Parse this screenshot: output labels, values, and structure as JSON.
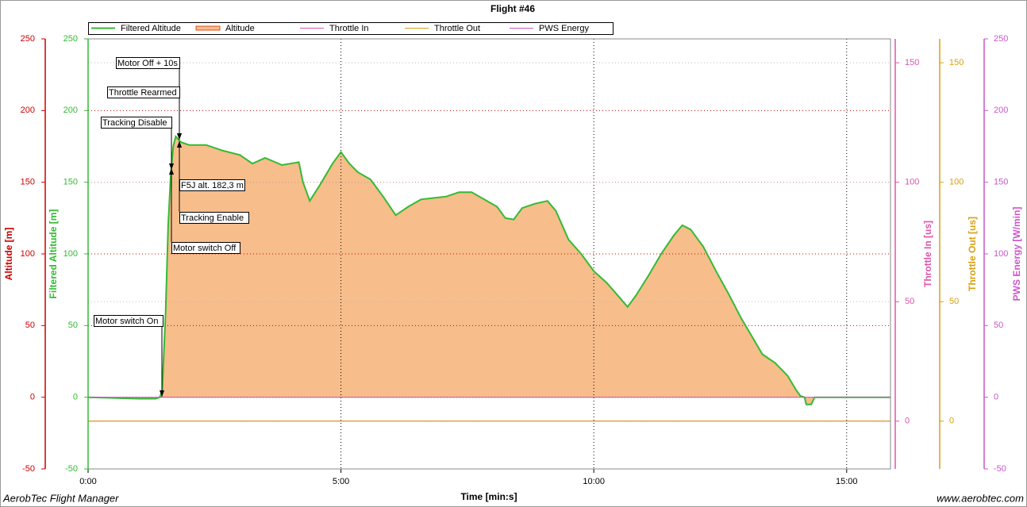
{
  "chart_data": {
    "type": "line",
    "title": "Flight #46",
    "x_label": "Time [min:s]",
    "footer_left": "AerobTec Flight Manager",
    "footer_right": "www.aerobtec.com",
    "xlim": [
      0,
      952
    ],
    "xticks": [
      {
        "value": 0,
        "label": "0:00"
      },
      {
        "value": 300,
        "label": "5:00"
      },
      {
        "value": 600,
        "label": "10:00"
      },
      {
        "value": 900,
        "label": "15:00"
      }
    ],
    "grid": true,
    "y_axes": [
      {
        "label": "Altitude [m]",
        "color": "#cc0000",
        "ylim": [
          -50,
          250
        ],
        "yticks": [
          -50,
          0,
          50,
          100,
          150,
          200,
          250
        ]
      },
      {
        "label": "Filtered Altitude [m]",
        "color": "#33bb33",
        "ylim": [
          -50,
          250
        ],
        "yticks": [
          -50,
          0,
          50,
          100,
          150,
          200,
          250
        ]
      },
      {
        "label": "Throttle In [us]",
        "color": "#dd55aa",
        "ylim": [
          -20,
          160
        ],
        "yticks": [
          0,
          50,
          100,
          150
        ]
      },
      {
        "label": "Throttle Out [us]",
        "color": "#d9a010",
        "ylim": [
          -20,
          160
        ],
        "yticks": [
          0,
          50,
          100,
          150
        ]
      },
      {
        "label": "PWS Energy [W/min]",
        "color": "#cc55cc",
        "ylim": [
          -50,
          250
        ],
        "yticks": [
          -50,
          0,
          50,
          100,
          150,
          200,
          250
        ]
      }
    ],
    "x": [
      0,
      60,
      80,
      85,
      88,
      92,
      95,
      98,
      101,
      104,
      110,
      120,
      140,
      160,
      180,
      195,
      210,
      230,
      240,
      250,
      255,
      263,
      275,
      290,
      300,
      310,
      320,
      335,
      350,
      365,
      380,
      395,
      410,
      425,
      440,
      455,
      470,
      485,
      495,
      505,
      515,
      530,
      545,
      555,
      570,
      585,
      600,
      615,
      630,
      640,
      650,
      665,
      680,
      695,
      705,
      715,
      730,
      745,
      760,
      775,
      790,
      800,
      815,
      830,
      840,
      845,
      850,
      852,
      858,
      862,
      900,
      952
    ],
    "series": [
      {
        "name": "Filtered Altitude",
        "color": "#33bb33",
        "axis": 1,
        "style": "line",
        "values": [
          0,
          -1,
          -1,
          0,
          5,
          60,
          120,
          155,
          175,
          182,
          178,
          176,
          176,
          172,
          169,
          163,
          167,
          162,
          163,
          164,
          150,
          137,
          148,
          163,
          171,
          163,
          157,
          152,
          140,
          127,
          133,
          138,
          139,
          140,
          143,
          143,
          138,
          133,
          125,
          124,
          132,
          135,
          137,
          130,
          110,
          100,
          88,
          80,
          70,
          63,
          71,
          85,
          100,
          113,
          120,
          117,
          105,
          88,
          72,
          55,
          40,
          30,
          24,
          15,
          5,
          1,
          0,
          -5,
          -5,
          0,
          0,
          0
        ]
      },
      {
        "name": "Altitude",
        "color": "#f7bd8b",
        "axis": 0,
        "style": "area",
        "values": [
          0,
          -1,
          -1,
          0,
          5,
          60,
          120,
          155,
          175,
          182,
          178,
          176,
          176,
          172,
          169,
          163,
          167,
          162,
          163,
          164,
          150,
          137,
          148,
          163,
          171,
          163,
          157,
          152,
          140,
          127,
          133,
          138,
          139,
          140,
          143,
          143,
          138,
          133,
          125,
          124,
          132,
          135,
          137,
          130,
          110,
          100,
          88,
          80,
          70,
          63,
          71,
          85,
          100,
          113,
          120,
          117,
          105,
          88,
          72,
          55,
          40,
          30,
          24,
          15,
          5,
          1,
          0,
          -5,
          -5,
          0,
          0,
          0
        ]
      },
      {
        "name": "Throttle In",
        "color": "#dd55aa",
        "axis": 2,
        "style": "line",
        "values": [
          0,
          0,
          0,
          0,
          0,
          0,
          0,
          0,
          0,
          0,
          0,
          0,
          0,
          0,
          0,
          0,
          0,
          0,
          0,
          0,
          0,
          0,
          0,
          0,
          0,
          0,
          0,
          0,
          0,
          0,
          0,
          0,
          0,
          0,
          0,
          0,
          0,
          0,
          0,
          0,
          0,
          0,
          0,
          0,
          0,
          0,
          0,
          0,
          0,
          0,
          0,
          0,
          0,
          0,
          0,
          0,
          0,
          0,
          0,
          0,
          0,
          0,
          0,
          0,
          0,
          0,
          0,
          0,
          0,
          0,
          0,
          0
        ]
      },
      {
        "name": "Throttle Out",
        "color": "#d9a010",
        "axis": 3,
        "style": "line",
        "values": [
          0,
          0,
          0,
          0,
          0,
          0,
          0,
          0,
          0,
          0,
          0,
          0,
          0,
          0,
          0,
          0,
          0,
          0,
          0,
          0,
          0,
          0,
          0,
          0,
          0,
          0,
          0,
          0,
          0,
          0,
          0,
          0,
          0,
          0,
          0,
          0,
          0,
          0,
          0,
          0,
          0,
          0,
          0,
          0,
          0,
          0,
          0,
          0,
          0,
          0,
          0,
          0,
          0,
          0,
          0,
          0,
          0,
          0,
          0,
          0,
          0,
          0,
          0,
          0,
          0,
          0,
          0,
          0,
          0,
          0,
          0,
          0
        ]
      },
      {
        "name": "PWS Energy",
        "color": "#cc55cc",
        "axis": 4,
        "style": "line",
        "values": [
          0,
          0,
          0,
          0,
          0,
          0,
          0,
          0,
          0,
          0,
          0,
          0,
          0,
          0,
          0,
          0,
          0,
          0,
          0,
          0,
          0,
          0,
          0,
          0,
          0,
          0,
          0,
          0,
          0,
          0,
          0,
          0,
          0,
          0,
          0,
          0,
          0,
          0,
          0,
          0,
          0,
          0,
          0,
          0,
          0,
          0,
          0,
          0,
          0,
          0,
          0,
          0,
          0,
          0,
          0,
          0,
          0,
          0,
          0,
          0,
          0,
          0,
          0,
          0,
          0,
          0,
          0,
          0,
          0,
          0,
          0,
          0
        ]
      }
    ],
    "annotations": [
      "Motor Off + 10s",
      "Throttle Rearmed",
      "Tracking Disable",
      "F5J alt. 182,3 m",
      "Tracking Enable",
      "Motor switch Off",
      "Motor switch On"
    ]
  }
}
